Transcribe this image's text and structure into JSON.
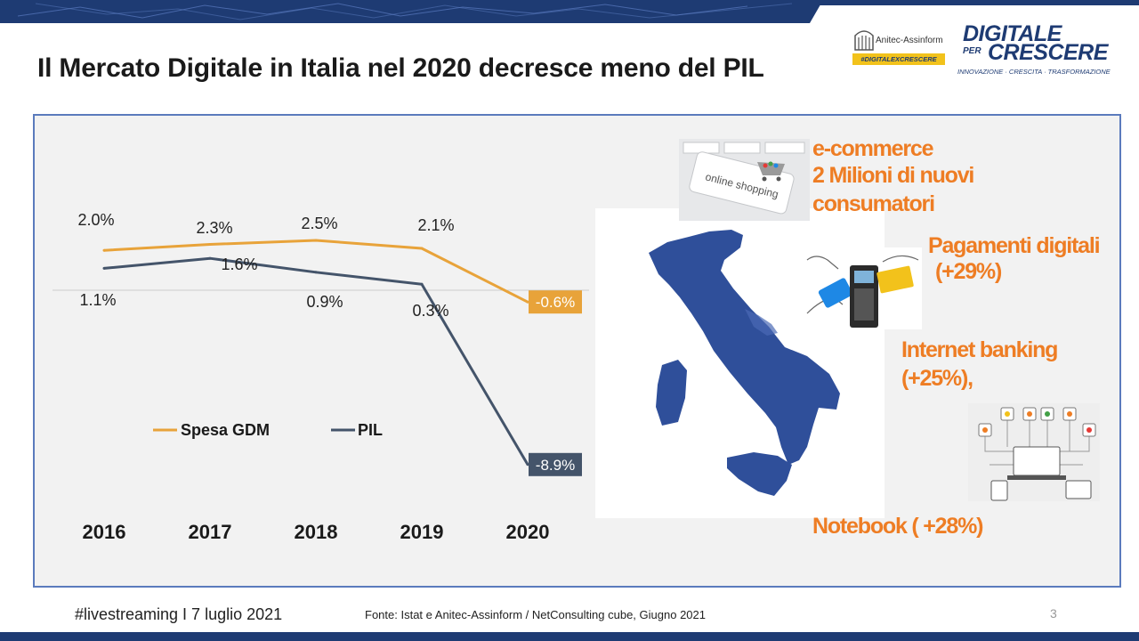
{
  "slide": {
    "title": "Il Mercato Digitale in Italia nel 2020 decresce meno del PIL",
    "page_number": "3"
  },
  "logos": {
    "anitec_name": "Anitec-Assinform",
    "anitec_tag": "#DIGITALEXCRESCERE",
    "dpc_line1": "DIGITALE",
    "dpc_per": "PER",
    "dpc_line2": "CRESCERE",
    "dpc_subtitle": "INNOVAZIONE · CRESCITA · TRASFORMAZIONE"
  },
  "highlights": {
    "ecommerce_title": "e-commerce",
    "ecommerce_line2": "2 Milioni di nuovi",
    "ecommerce_line3": "consumatori",
    "payments_title": "Pagamenti digitali",
    "payments_value": "(+29%)",
    "banking_title": "Internet banking",
    "banking_value": "(+25%),",
    "notebook": "Notebook ( +28%)",
    "keyboard_key_label": "online shopping"
  },
  "footer": {
    "event": "#livestreaming  I  7 luglio 2021",
    "source": "Fonte: Istat e Anitec-Assinform / NetConsulting cube, Giugno 2021"
  },
  "colors": {
    "spesa_gdm": "#e8a33a",
    "pil": "#44546a",
    "map_blue": "#2f4f9a",
    "highlight_orange": "#ee7d24",
    "brand_navy": "#1e3b73"
  },
  "chart_data": {
    "type": "line",
    "categories": [
      "2016",
      "2017",
      "2018",
      "2019",
      "2020"
    ],
    "series": [
      {
        "name": "Spesa GDM",
        "values": [
          2.0,
          2.3,
          2.5,
          2.1,
          -0.6
        ],
        "labels": [
          "2.0%",
          "2.3%",
          "2.5%",
          "2.1%",
          "-0.6%"
        ]
      },
      {
        "name": "PIL",
        "values": [
          1.1,
          1.6,
          0.9,
          0.3,
          -8.9
        ],
        "labels": [
          "1.1%",
          "1.6%",
          "0.9%",
          "0.3%",
          "-8.9%"
        ]
      }
    ],
    "title": "",
    "xlabel": "",
    "ylabel": "",
    "legend": "middle-left",
    "grid": false,
    "zero_line": true
  }
}
